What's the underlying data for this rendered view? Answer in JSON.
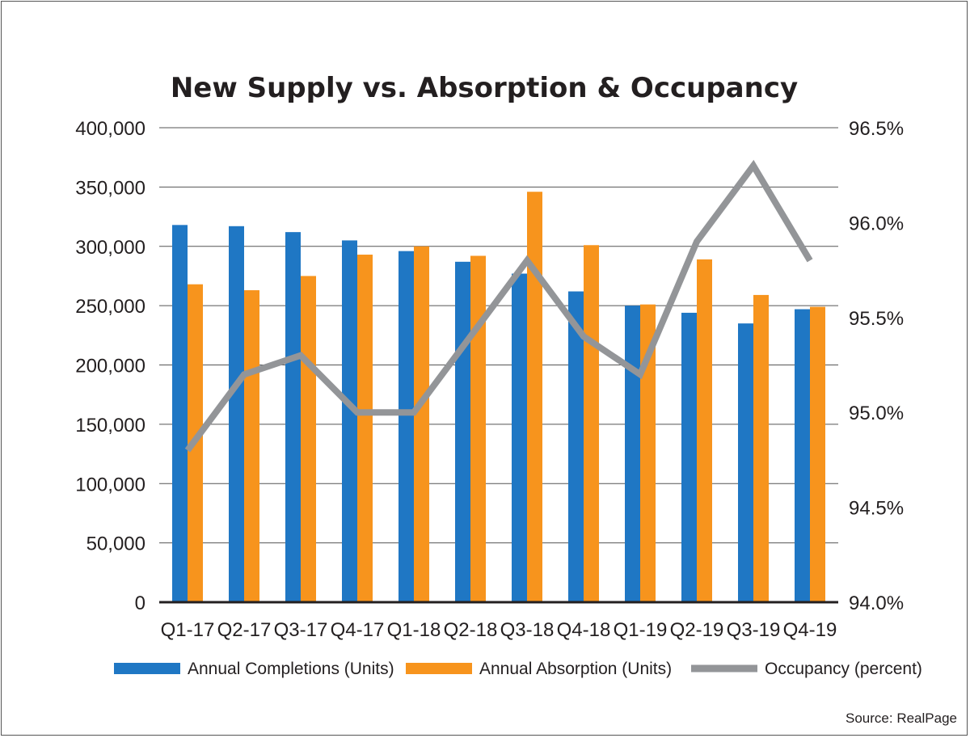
{
  "chart_data": {
    "type": "bar",
    "title": "New Supply vs. Absorption & Occupancy",
    "source": "Source: RealPage",
    "categories": [
      "Q1-17",
      "Q2-17",
      "Q3-17",
      "Q4-17",
      "Q1-18",
      "Q2-18",
      "Q3-18",
      "Q4-18",
      "Q1-19",
      "Q2-19",
      "Q3-19",
      "Q4-19"
    ],
    "y_left": {
      "min": 0,
      "max": 400000,
      "ticks": [
        0,
        50000,
        100000,
        150000,
        200000,
        250000,
        300000,
        350000,
        400000
      ],
      "tick_labels": [
        "0",
        "50,000",
        "100,000",
        "150,000",
        "200,000",
        "250,000",
        "300,000",
        "350,000",
        "400,000"
      ]
    },
    "y_right": {
      "min": 94.0,
      "max": 96.5,
      "ticks": [
        94.0,
        94.5,
        95.0,
        95.5,
        96.0,
        96.5
      ],
      "tick_labels": [
        "94.0%",
        "94.5%",
        "95.0%",
        "95.5%",
        "96.0%",
        "96.5%"
      ]
    },
    "grid": true,
    "legend_position": "bottom",
    "series": [
      {
        "name": "Annual Completions (Units)",
        "type": "bar",
        "axis": "left",
        "color": "#1f77c4",
        "values": [
          318000,
          317000,
          312000,
          305000,
          296000,
          287000,
          277000,
          262000,
          250000,
          244000,
          235000,
          247000
        ]
      },
      {
        "name": "Annual Absorption (Units)",
        "type": "bar",
        "axis": "left",
        "color": "#f7941d",
        "values": [
          268000,
          263000,
          275000,
          293000,
          300000,
          292000,
          346000,
          301000,
          251000,
          289000,
          259000,
          249000
        ]
      },
      {
        "name": "Occupancy (percent)",
        "type": "line",
        "axis": "right",
        "color": "#939598",
        "values": [
          94.8,
          95.2,
          95.3,
          95.0,
          95.0,
          95.4,
          95.8,
          95.4,
          95.2,
          95.9,
          96.3,
          95.8
        ]
      }
    ]
  }
}
